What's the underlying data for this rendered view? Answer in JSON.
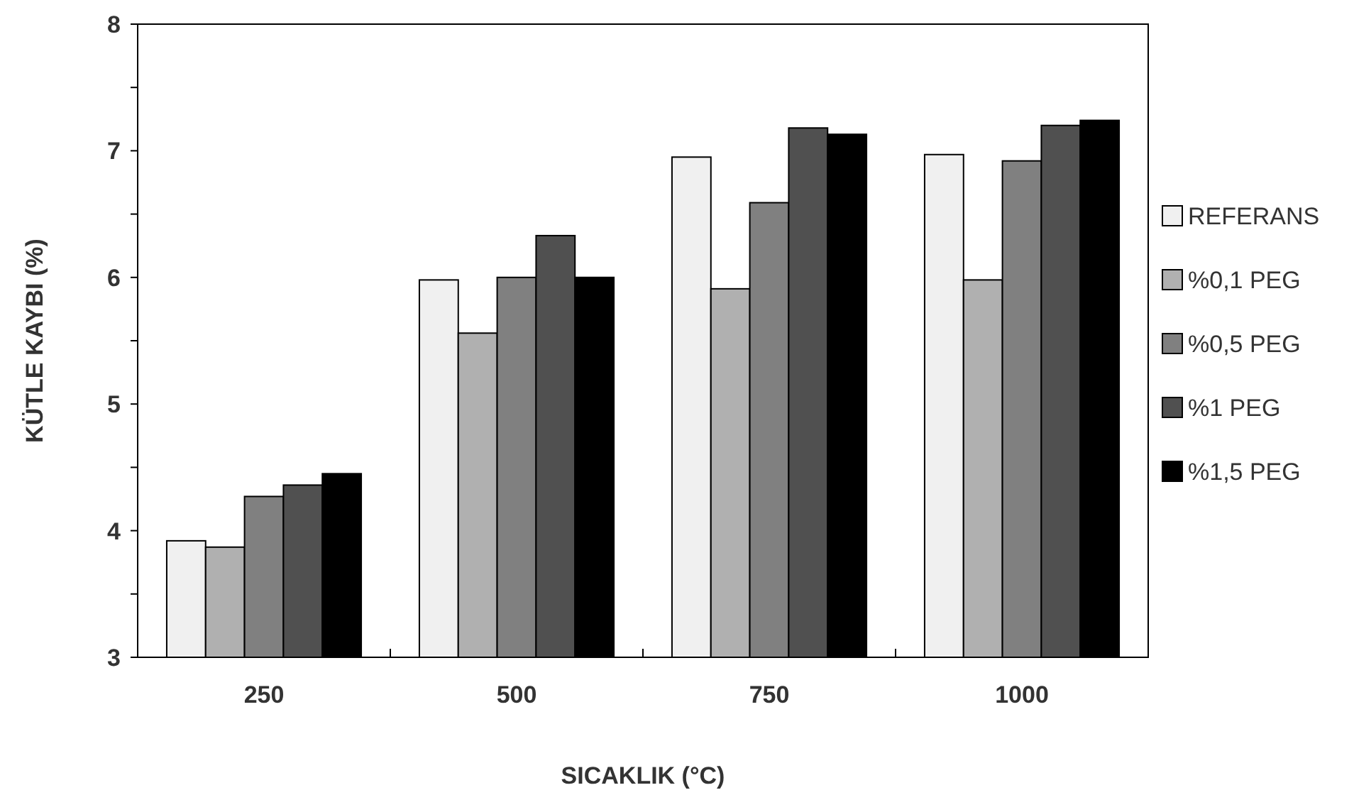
{
  "chart_data": {
    "type": "bar",
    "xlabel": "SICAKLIK (°C)",
    "ylabel": "KÜTLE KAYBI (%)",
    "categories": [
      "250",
      "500",
      "750",
      "1000"
    ],
    "series": [
      {
        "name": "REFERANS",
        "color": "#f0f0f0",
        "values": [
          3.92,
          5.98,
          6.95,
          6.97
        ]
      },
      {
        "name": "%0,1 PEG",
        "color": "#b0b0b0",
        "values": [
          3.87,
          5.56,
          5.91,
          5.98
        ]
      },
      {
        "name": "%0,5 PEG",
        "color": "#808080",
        "values": [
          4.27,
          6.0,
          6.59,
          6.92
        ]
      },
      {
        "name": "%1 PEG",
        "color": "#505050",
        "values": [
          4.36,
          6.33,
          7.18,
          7.2
        ]
      },
      {
        "name": "%1,5 PEG",
        "color": "#000000",
        "values": [
          4.45,
          6.0,
          7.13,
          7.24
        ]
      }
    ],
    "ylim": [
      3,
      8
    ],
    "yticks": [
      3,
      {
        "value": 3.5,
        "label": null
      },
      4,
      {
        "value": 4.5,
        "label": null
      },
      5,
      {
        "value": 5.5,
        "label": null
      },
      6,
      {
        "value": 6.5,
        "label": null
      },
      7,
      {
        "value": 7.5,
        "label": null
      },
      8
    ],
    "grid": false,
    "legend": "right"
  }
}
